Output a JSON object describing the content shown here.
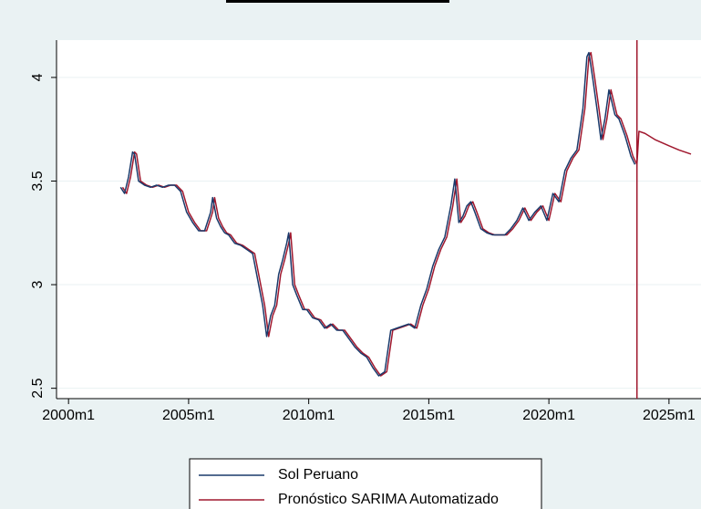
{
  "chart_data": {
    "type": "line",
    "xlim": [
      "1999m7",
      "2026m5"
    ],
    "xticks": [
      "2000m1",
      "2005m1",
      "2010m1",
      "2015m1",
      "2020m1",
      "2025m1"
    ],
    "ylim": [
      2.45,
      4.18
    ],
    "yticks": [
      2.5,
      3,
      3.5,
      4
    ],
    "grid": true,
    "xline": {
      "x": "2023m9",
      "color": "#a0182e"
    },
    "legend": "bottom",
    "series": [
      {
        "name": "Sol Peruano",
        "color": "#1a3a6b",
        "x": [
          "2002m3",
          "2002m5",
          "2002m7",
          "2002m9",
          "2002m10",
          "2002m12",
          "2003m3",
          "2003m6",
          "2003m9",
          "2003m12",
          "2004m3",
          "2004m6",
          "2004m9",
          "2004m12",
          "2005m3",
          "2005m6",
          "2005m9",
          "2005m12",
          "2006m1",
          "2006m3",
          "2006m5",
          "2006m7",
          "2006m9",
          "2006m12",
          "2007m3",
          "2007m6",
          "2007m9",
          "2007m12",
          "2008m2",
          "2008m4",
          "2008m6",
          "2008m8",
          "2008m10",
          "2008m12",
          "2009m2",
          "2009m3",
          "2009m5",
          "2009m7",
          "2009m10",
          "2009m12",
          "2010m3",
          "2010m6",
          "2010m9",
          "2010m12",
          "2011m3",
          "2011m6",
          "2011m9",
          "2011m12",
          "2012m3",
          "2012m6",
          "2012m9",
          "2012m12",
          "2013m3",
          "2013m6",
          "2013m9",
          "2013m12",
          "2014m3",
          "2014m6",
          "2014m9",
          "2014m12",
          "2015m3",
          "2015m6",
          "2015m9",
          "2015m12",
          "2016m2",
          "2016m4",
          "2016m6",
          "2016m8",
          "2016m10",
          "2016m12",
          "2017m3",
          "2017m6",
          "2017m9",
          "2017m12",
          "2018m3",
          "2018m6",
          "2018m9",
          "2018m12",
          "2019m3",
          "2019m6",
          "2019m9",
          "2019m12",
          "2020m3",
          "2020m6",
          "2020m9",
          "2020m12",
          "2021m3",
          "2021m6",
          "2021m8",
          "2021m9",
          "2021m11",
          "2022m1",
          "2022m3",
          "2022m5",
          "2022m7",
          "2022m8",
          "2022m10",
          "2022m12",
          "2023m3",
          "2023m6",
          "2023m8"
        ],
        "values": [
          3.47,
          3.44,
          3.52,
          3.64,
          3.63,
          3.5,
          3.48,
          3.47,
          3.48,
          3.47,
          3.48,
          3.48,
          3.45,
          3.35,
          3.3,
          3.26,
          3.26,
          3.35,
          3.42,
          3.32,
          3.28,
          3.25,
          3.24,
          3.2,
          3.19,
          3.17,
          3.15,
          3.0,
          2.9,
          2.75,
          2.85,
          2.9,
          3.05,
          3.12,
          3.2,
          3.25,
          3.0,
          2.95,
          2.88,
          2.88,
          2.84,
          2.83,
          2.79,
          2.81,
          2.78,
          2.78,
          2.74,
          2.7,
          2.67,
          2.65,
          2.6,
          2.56,
          2.58,
          2.78,
          2.79,
          2.8,
          2.81,
          2.79,
          2.9,
          2.98,
          3.09,
          3.17,
          3.23,
          3.38,
          3.51,
          3.3,
          3.33,
          3.38,
          3.4,
          3.35,
          3.27,
          3.25,
          3.24,
          3.24,
          3.24,
          3.27,
          3.31,
          3.37,
          3.31,
          3.35,
          3.38,
          3.31,
          3.44,
          3.4,
          3.55,
          3.61,
          3.65,
          3.85,
          4.1,
          4.12,
          3.99,
          3.85,
          3.7,
          3.8,
          3.94,
          3.9,
          3.82,
          3.8,
          3.72,
          3.62,
          3.58
        ]
      },
      {
        "name": "Pronóstico SARIMA Automatizado",
        "color": "#a0182e",
        "x": [
          "2002m4",
          "2002m6",
          "2002m8",
          "2002m10",
          "2002m11",
          "2003m1",
          "2003m4",
          "2003m7",
          "2003m10",
          "2004m1",
          "2004m4",
          "2004m7",
          "2004m10",
          "2005m1",
          "2005m4",
          "2005m7",
          "2005m10",
          "2006m1",
          "2006m2",
          "2006m4",
          "2006m6",
          "2006m8",
          "2006m10",
          "2007m1",
          "2007m4",
          "2007m7",
          "2007m10",
          "2008m1",
          "2008m3",
          "2008m5",
          "2008m7",
          "2008m9",
          "2008m11",
          "2009m1",
          "2009m3",
          "2009m4",
          "2009m6",
          "2009m8",
          "2009m11",
          "2010m1",
          "2010m4",
          "2010m7",
          "2010m10",
          "2011m1",
          "2011m4",
          "2011m7",
          "2011m10",
          "2012m1",
          "2012m4",
          "2012m7",
          "2012m10",
          "2013m1",
          "2013m4",
          "2013m7",
          "2013m10",
          "2014m1",
          "2014m4",
          "2014m7",
          "2014m10",
          "2015m1",
          "2015m4",
          "2015m7",
          "2015m10",
          "2016m1",
          "2016m3",
          "2016m5",
          "2016m7",
          "2016m9",
          "2016m11",
          "2017m1",
          "2017m4",
          "2017m7",
          "2017m10",
          "2018m1",
          "2018m4",
          "2018m7",
          "2018m10",
          "2019m1",
          "2019m4",
          "2019m7",
          "2019m10",
          "2020m1",
          "2020m4",
          "2020m7",
          "2020m10",
          "2021m1",
          "2021m4",
          "2021m7",
          "2021m9",
          "2021m10",
          "2021m12",
          "2022m2",
          "2022m4",
          "2022m6",
          "2022m8",
          "2022m9",
          "2022m11",
          "2023m1",
          "2023m4",
          "2023m7",
          "2023m9",
          "2023m10",
          "2024m1",
          "2024m6",
          "2025m1",
          "2025m6",
          "2025m12"
        ],
        "values": [
          3.47,
          3.44,
          3.52,
          3.64,
          3.63,
          3.5,
          3.48,
          3.47,
          3.48,
          3.47,
          3.48,
          3.48,
          3.45,
          3.35,
          3.3,
          3.26,
          3.26,
          3.35,
          3.42,
          3.32,
          3.28,
          3.25,
          3.24,
          3.2,
          3.19,
          3.17,
          3.15,
          3.0,
          2.9,
          2.75,
          2.85,
          2.9,
          3.05,
          3.12,
          3.2,
          3.25,
          3.0,
          2.95,
          2.88,
          2.88,
          2.84,
          2.83,
          2.79,
          2.81,
          2.78,
          2.78,
          2.74,
          2.7,
          2.67,
          2.65,
          2.6,
          2.56,
          2.58,
          2.78,
          2.79,
          2.8,
          2.81,
          2.79,
          2.9,
          2.98,
          3.09,
          3.17,
          3.23,
          3.38,
          3.51,
          3.3,
          3.33,
          3.38,
          3.4,
          3.35,
          3.27,
          3.25,
          3.24,
          3.24,
          3.24,
          3.27,
          3.31,
          3.37,
          3.31,
          3.35,
          3.38,
          3.31,
          3.44,
          3.4,
          3.55,
          3.61,
          3.65,
          3.85,
          4.1,
          4.12,
          3.99,
          3.85,
          3.7,
          3.8,
          3.94,
          3.9,
          3.82,
          3.8,
          3.72,
          3.62,
          3.58,
          3.74,
          3.73,
          3.7,
          3.67,
          3.65,
          3.63
        ]
      }
    ]
  }
}
